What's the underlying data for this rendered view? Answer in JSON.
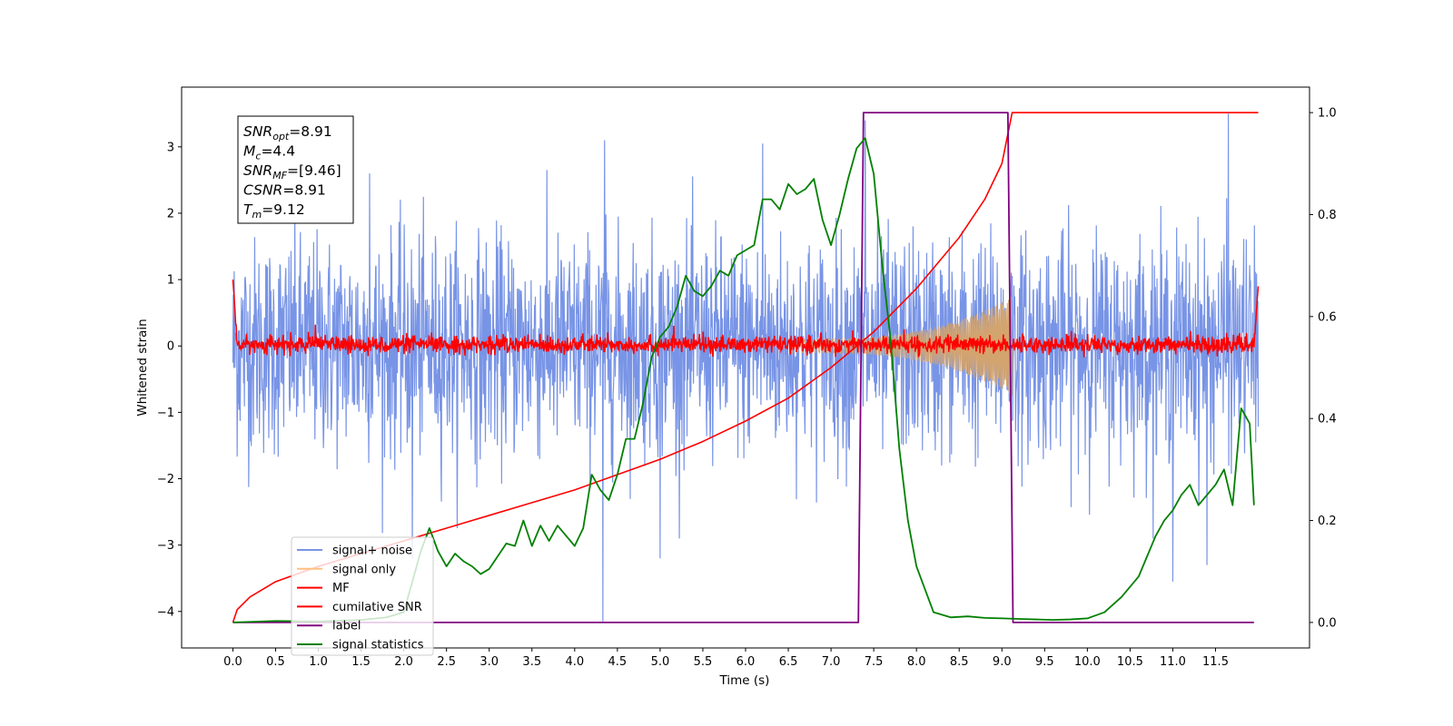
{
  "chart_data": {
    "type": "line",
    "xlabel": "Time (s)",
    "ylabel": "Whitened strain",
    "xlim": [
      -0.6,
      12.6
    ],
    "ylim_left": [
      -4.55,
      3.9
    ],
    "ylim_right": [
      -0.05,
      1.05
    ],
    "x_tick_labels": [
      "0.0",
      "0.5",
      "1.0",
      "1.5",
      "2.0",
      "2.5",
      "3.0",
      "3.5",
      "4.0",
      "4.5",
      "5.0",
      "5.5",
      "6.0",
      "6.5",
      "7.0",
      "7.5",
      "8.0",
      "8.5",
      "9.0",
      "9.5",
      "10.0",
      "10.5",
      "11.0",
      "11.5"
    ],
    "y_left_tick_labels": [
      "3",
      "2",
      "1",
      "0",
      "−1",
      "−2",
      "−3",
      "−4"
    ],
    "y_left_ticks": [
      3,
      2,
      1,
      0,
      -1,
      -2,
      -3,
      -4
    ],
    "y_right_tick_labels": [
      "1.0",
      "0.8",
      "0.6",
      "0.4",
      "0.2",
      "0.0"
    ],
    "y_right_ticks": [
      1.0,
      0.8,
      0.6,
      0.4,
      0.2,
      0.0
    ],
    "annotation": [
      {
        "var": "SNR",
        "sub": "opt",
        "value": "=8.91"
      },
      {
        "var": "M",
        "sub": "c",
        "value": "=4.4"
      },
      {
        "var": "SNR",
        "sub": "MF",
        "value": "=[9.46]"
      },
      {
        "var": "CSNR",
        "sub": "",
        "value": "=8.91"
      },
      {
        "var": "T",
        "sub": "m",
        "value": "=9.12"
      }
    ],
    "legend_position": "lower-left",
    "legend": [
      {
        "label": "signal+ noise",
        "color": "#7894e6"
      },
      {
        "label": "signal only",
        "color": "#ffc080"
      },
      {
        "label": "MF",
        "color": "#ff0000"
      },
      {
        "label": "cumilative SNR",
        "color": "#ff0000"
      },
      {
        "label": "label",
        "color": "#800080"
      },
      {
        "label": "signal statistics",
        "color": "#008000"
      }
    ],
    "series": [
      {
        "name": "signal+ noise",
        "axis": "left",
        "color": "#7894e6",
        "x_range": [
          0.0,
          12.0
        ],
        "envelope_typical": [
          -1.7,
          1.7
        ],
        "spikes": [
          [
            4.33,
            -4.15
          ],
          [
            7.4,
            3.4
          ],
          [
            11.65,
            3.5
          ],
          [
            2.1,
            -3.2
          ],
          [
            5.0,
            -3.2
          ],
          [
            11.0,
            -3.55
          ],
          [
            11.4,
            -3.3
          ],
          [
            1.6,
            2.6
          ],
          [
            4.35,
            3.1
          ],
          [
            6.2,
            3.05
          ]
        ]
      },
      {
        "name": "signal only",
        "axis": "left",
        "color": "#d4a46e",
        "chirp_start": 6.5,
        "chirp_end": 9.12,
        "envelope_start": 0.1,
        "envelope_end": 0.75
      },
      {
        "name": "MF",
        "axis": "left",
        "color": "#ff0000",
        "x_range": [
          0.0,
          12.0
        ],
        "envelope_typical": [
          -0.15,
          0.2
        ],
        "edge_peak": 1.0
      },
      {
        "name": "cumilative SNR",
        "axis": "right",
        "color": "#ff0000",
        "x": [
          0.0,
          0.05,
          0.2,
          0.5,
          1.0,
          1.5,
          2.0,
          2.5,
          3.0,
          3.5,
          4.0,
          4.5,
          5.0,
          5.5,
          6.0,
          6.5,
          7.0,
          7.5,
          8.0,
          8.5,
          8.8,
          9.0,
          9.12,
          12.0
        ],
        "y": [
          0.0,
          0.025,
          0.05,
          0.08,
          0.11,
          0.135,
          0.16,
          0.185,
          0.21,
          0.235,
          0.26,
          0.29,
          0.32,
          0.355,
          0.395,
          0.44,
          0.5,
          0.57,
          0.655,
          0.755,
          0.83,
          0.9,
          1.0,
          1.0
        ]
      },
      {
        "name": "label",
        "axis": "right",
        "color": "#800080",
        "x": [
          0.0,
          7.32,
          7.38,
          9.07,
          9.13,
          11.95
        ],
        "y": [
          0.0,
          0.0,
          1.0,
          1.0,
          0.0,
          0.0
        ]
      },
      {
        "name": "signal statistics",
        "axis": "right",
        "color": "#008000",
        "x": [
          0.0,
          0.5,
          1.0,
          1.5,
          1.8,
          2.0,
          2.1,
          2.2,
          2.3,
          2.4,
          2.5,
          2.6,
          2.7,
          2.8,
          2.9,
          3.0,
          3.1,
          3.2,
          3.3,
          3.4,
          3.5,
          3.6,
          3.7,
          3.8,
          3.9,
          4.0,
          4.1,
          4.2,
          4.3,
          4.4,
          4.5,
          4.6,
          4.7,
          4.8,
          4.9,
          5.0,
          5.1,
          5.2,
          5.3,
          5.4,
          5.5,
          5.6,
          5.7,
          5.8,
          5.9,
          6.0,
          6.1,
          6.2,
          6.3,
          6.4,
          6.5,
          6.6,
          6.7,
          6.8,
          6.9,
          7.0,
          7.1,
          7.2,
          7.3,
          7.4,
          7.5,
          7.6,
          7.7,
          7.8,
          7.9,
          8.0,
          8.2,
          8.4,
          8.6,
          8.8,
          9.0,
          9.2,
          9.4,
          9.6,
          9.8,
          10.0,
          10.2,
          10.4,
          10.6,
          10.8,
          10.9,
          11.0,
          11.1,
          11.2,
          11.3,
          11.4,
          11.5,
          11.6,
          11.7,
          11.8,
          11.9,
          11.95
        ],
        "y": [
          0.0,
          0.003,
          0.002,
          0.005,
          0.01,
          0.02,
          0.08,
          0.14,
          0.185,
          0.14,
          0.11,
          0.135,
          0.12,
          0.11,
          0.095,
          0.105,
          0.13,
          0.155,
          0.15,
          0.2,
          0.15,
          0.19,
          0.16,
          0.19,
          0.17,
          0.15,
          0.185,
          0.29,
          0.26,
          0.24,
          0.29,
          0.36,
          0.36,
          0.43,
          0.52,
          0.56,
          0.58,
          0.62,
          0.68,
          0.65,
          0.64,
          0.66,
          0.69,
          0.68,
          0.72,
          0.73,
          0.74,
          0.83,
          0.83,
          0.81,
          0.86,
          0.84,
          0.85,
          0.87,
          0.79,
          0.74,
          0.8,
          0.87,
          0.93,
          0.95,
          0.88,
          0.7,
          0.55,
          0.34,
          0.2,
          0.11,
          0.02,
          0.01,
          0.012,
          0.009,
          0.008,
          0.007,
          0.006,
          0.005,
          0.006,
          0.008,
          0.02,
          0.05,
          0.09,
          0.17,
          0.2,
          0.22,
          0.25,
          0.27,
          0.23,
          0.25,
          0.27,
          0.3,
          0.23,
          0.42,
          0.39,
          0.23
        ]
      }
    ]
  }
}
